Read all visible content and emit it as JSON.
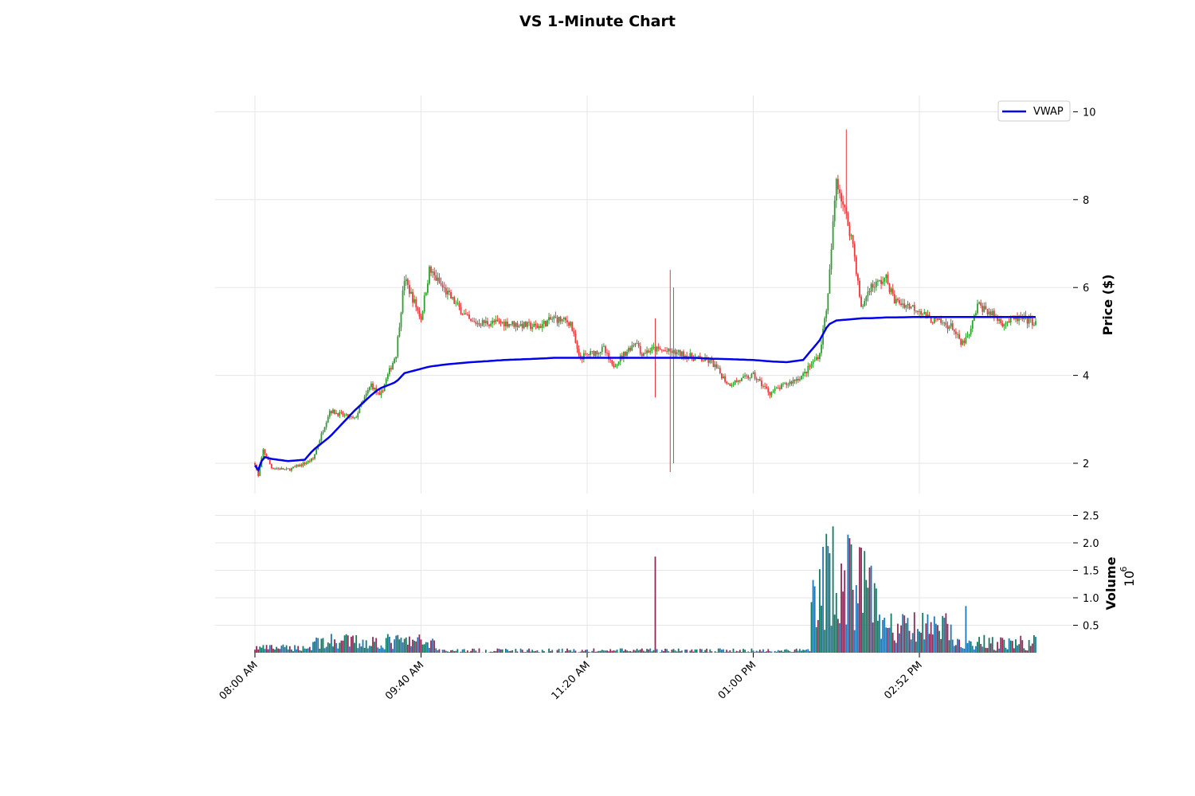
{
  "chart_data": {
    "type": "candlestick",
    "title": "VS 1-Minute Chart",
    "ylabel": "Price ($)",
    "volume_label": "Volume",
    "volume_multiplier_label": "10",
    "volume_multiplier_exp": "6",
    "legend": [
      {
        "name": "VWAP",
        "color": "#0000ee"
      }
    ],
    "x_ticks": [
      "08:00 AM",
      "09:40 AM",
      "11:20 AM",
      "01:00 PM",
      "02:52 PM"
    ],
    "price_ticks": [
      "2",
      "4",
      "6",
      "8",
      "10"
    ],
    "volume_ticks": [
      "0.5",
      "1.0",
      "1.5",
      "2.0",
      "2.5"
    ],
    "price_ylim": [
      1.0,
      10.4
    ],
    "volume_ylim": [
      0,
      2.5
    ],
    "colors": {
      "up": "#2ca02c",
      "down": "#e8383c",
      "vwap": "#0000ee",
      "vol_up": "#117a65",
      "vol_down": "#8e2a58",
      "vol_neutral": "#1f77b4",
      "grid": "#e6e6e6"
    },
    "price_keypoints": {
      "description_minutes_from_open": [
        0,
        2,
        5,
        10,
        20,
        30,
        35,
        45,
        60,
        70,
        75,
        85,
        90,
        100,
        105,
        115,
        130,
        150,
        170,
        180,
        190,
        195,
        210,
        215,
        230,
        232,
        240,
        255,
        265,
        275,
        285,
        300,
        310,
        320,
        330,
        340,
        345,
        350,
        360,
        365,
        370,
        380,
        385,
        400,
        405,
        420,
        425,
        430,
        435,
        440,
        450,
        460,
        470
      ],
      "close": [
        2.0,
        1.7,
        2.3,
        1.9,
        1.85,
        2.0,
        2.1,
        3.2,
        3.0,
        3.8,
        3.5,
        4.5,
        6.2,
        5.3,
        6.4,
        5.9,
        5.2,
        5.2,
        5.1,
        5.3,
        5.2,
        4.4,
        4.6,
        4.2,
        4.8,
        4.5,
        4.6,
        4.5,
        4.4,
        4.3,
        3.8,
        4.0,
        3.6,
        3.8,
        4.0,
        4.5,
        5.8,
        8.5,
        7.0,
        5.5,
        6.0,
        6.2,
        5.7,
        5.5,
        5.3,
        5.1,
        4.7,
        4.9,
        5.6,
        5.5,
        5.2,
        5.3,
        5.2
      ],
      "vwap": [
        1.95,
        1.85,
        2.15,
        2.1,
        2.05,
        2.08,
        2.3,
        2.6,
        3.2,
        3.55,
        3.7,
        3.85,
        4.05,
        4.15,
        4.2,
        4.25,
        4.3,
        4.35,
        4.38,
        4.4,
        4.4,
        4.4,
        4.4,
        4.4,
        4.4,
        4.4,
        4.4,
        4.4,
        4.4,
        4.38,
        4.37,
        4.35,
        4.32,
        4.3,
        4.35,
        4.8,
        5.15,
        5.25,
        5.28,
        5.3,
        5.3,
        5.32,
        5.32,
        5.33,
        5.33,
        5.33,
        5.33,
        5.33,
        5.33,
        5.33,
        5.33,
        5.33,
        5.33
      ]
    }
  }
}
